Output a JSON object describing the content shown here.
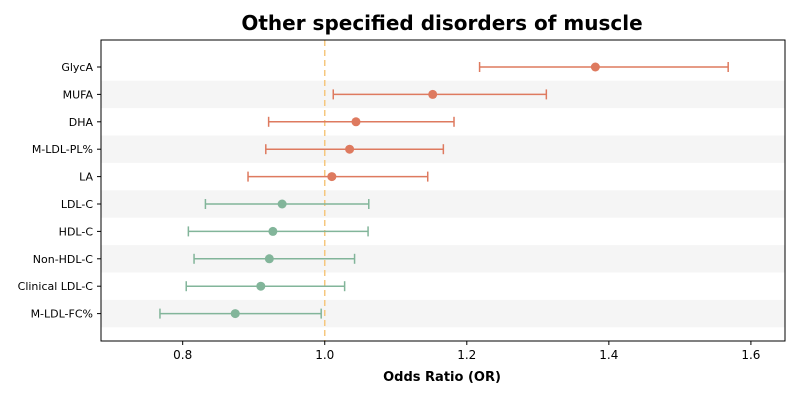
{
  "chart_data": {
    "type": "scatter",
    "subtype": "forest-plot",
    "title": "Other specified disorders of muscle",
    "xlabel": "Odds Ratio (OR)",
    "ylabel": "",
    "xlim": [
      0.685,
      1.648
    ],
    "xticks": [
      0.8,
      1.0,
      1.2,
      1.4,
      1.6
    ],
    "xtick_labels": [
      "0.8",
      "1.0",
      "1.2",
      "1.4",
      "1.6"
    ],
    "reference_line": {
      "x": 1.0,
      "color": "#f5c77e",
      "style": "dashed"
    },
    "grid": false,
    "row_shading": {
      "color": "#f5f5f5",
      "pattern": "alternate"
    },
    "colors": {
      "positive": "#de7a5f",
      "negative": "#82b59a"
    },
    "points": [
      {
        "label": "GlycA",
        "or": 1.381,
        "lower": 1.218,
        "upper": 1.568,
        "group": "positive"
      },
      {
        "label": "MUFA",
        "or": 1.152,
        "lower": 1.012,
        "upper": 1.312,
        "group": "positive"
      },
      {
        "label": "DHA",
        "or": 1.044,
        "lower": 0.921,
        "upper": 1.182,
        "group": "positive"
      },
      {
        "label": "M-LDL-PL%",
        "or": 1.035,
        "lower": 0.917,
        "upper": 1.167,
        "group": "positive"
      },
      {
        "label": "LA",
        "or": 1.01,
        "lower": 0.892,
        "upper": 1.145,
        "group": "positive"
      },
      {
        "label": "LDL-C",
        "or": 0.94,
        "lower": 0.832,
        "upper": 1.062,
        "group": "negative"
      },
      {
        "label": "HDL-C",
        "or": 0.927,
        "lower": 0.808,
        "upper": 1.061,
        "group": "negative"
      },
      {
        "label": "Non-HDL-C",
        "or": 0.922,
        "lower": 0.816,
        "upper": 1.042,
        "group": "negative"
      },
      {
        "label": "Clinical LDL-C",
        "or": 0.91,
        "lower": 0.805,
        "upper": 1.028,
        "group": "negative"
      },
      {
        "label": "M-LDL-FC%",
        "or": 0.874,
        "lower": 0.768,
        "upper": 0.995,
        "group": "negative"
      }
    ]
  }
}
